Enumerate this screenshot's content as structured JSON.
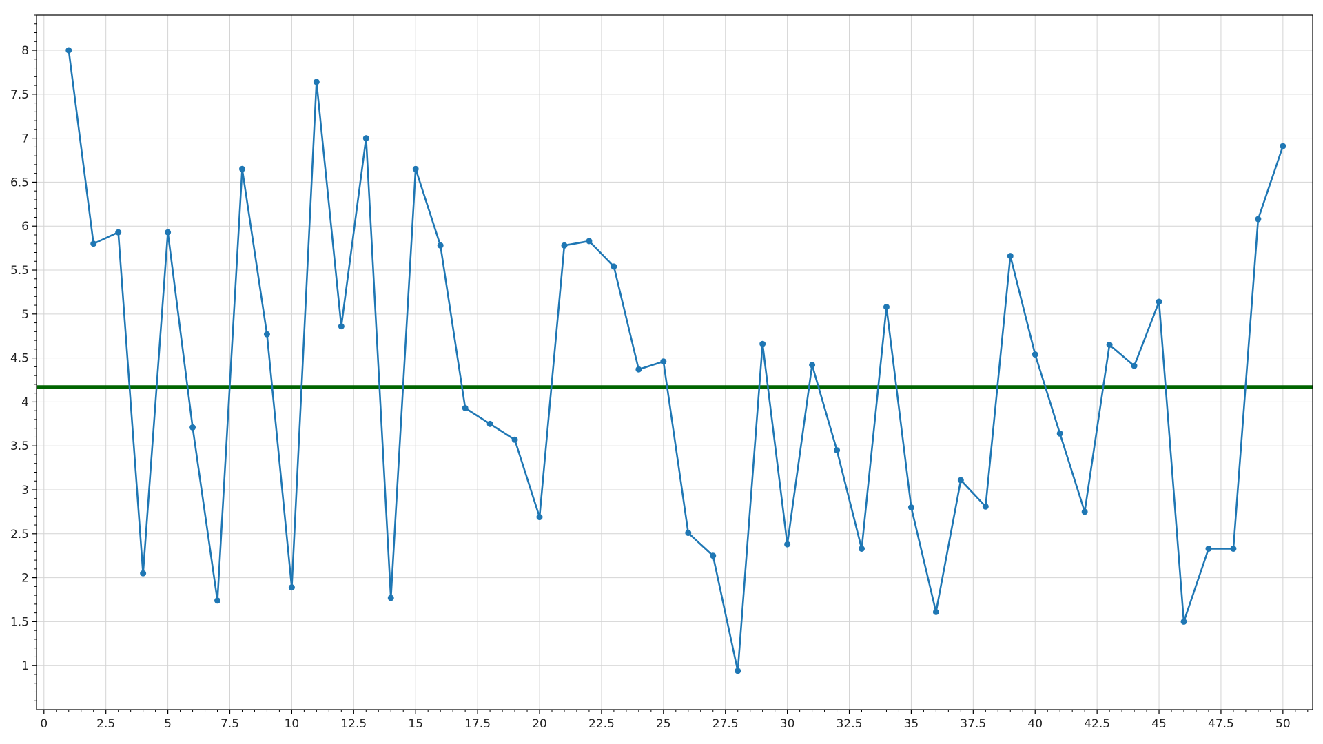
{
  "chart_data": {
    "type": "line",
    "title": "",
    "xlabel": "",
    "ylabel": "",
    "xlim": [
      -0.3,
      51.2
    ],
    "ylim": [
      0.5,
      8.4
    ],
    "x_ticks": [
      0,
      2.5,
      5,
      7.5,
      10,
      12.5,
      15,
      17.5,
      20,
      22.5,
      25,
      27.5,
      30,
      32.5,
      35,
      37.5,
      40,
      42.5,
      45,
      47.5,
      50
    ],
    "x_tick_labels": [
      "0",
      "2.5",
      "5",
      "7.5",
      "10",
      "12.5",
      "15",
      "17.5",
      "20",
      "22.5",
      "25",
      "27.5",
      "30",
      "32.5",
      "35",
      "37.5",
      "40",
      "42.5",
      "45",
      "47.5",
      "50"
    ],
    "y_ticks": [
      1,
      1.5,
      2,
      2.5,
      3,
      3.5,
      4,
      4.5,
      5,
      5.5,
      6,
      6.5,
      7,
      7.5,
      8
    ],
    "y_tick_labels": [
      "1",
      "1.5",
      "2",
      "2.5",
      "3",
      "3.5",
      "4",
      "4.5",
      "5",
      "5.5",
      "6",
      "6.5",
      "7",
      "7.5",
      "8"
    ],
    "grid": true,
    "series": [
      {
        "color": "#1f77b4",
        "marker": "circle",
        "x": [
          1,
          2,
          3,
          4,
          5,
          6,
          7,
          8,
          9,
          10,
          11,
          12,
          13,
          14,
          15,
          16,
          17,
          18,
          19,
          20,
          21,
          22,
          23,
          24,
          25,
          26,
          27,
          28,
          29,
          30,
          31,
          32,
          33,
          34,
          35,
          36,
          37,
          38,
          39,
          40,
          41,
          42,
          43,
          44,
          45,
          46,
          47,
          48,
          49,
          50
        ],
        "y": [
          8.0,
          5.8,
          5.93,
          2.05,
          5.93,
          3.71,
          1.74,
          6.65,
          4.77,
          1.89,
          7.64,
          4.86,
          7.0,
          1.77,
          6.65,
          5.78,
          3.93,
          3.75,
          3.57,
          2.69,
          5.78,
          5.83,
          5.54,
          4.37,
          4.46,
          2.51,
          2.25,
          0.94,
          4.66,
          2.38,
          4.42,
          3.45,
          2.33,
          5.08,
          2.8,
          1.61,
          3.11,
          2.81,
          5.66,
          4.54,
          3.64,
          2.75,
          4.65,
          4.41,
          5.14,
          1.5,
          2.33,
          2.33,
          6.08,
          6.91
        ]
      }
    ],
    "reference_line": {
      "orientation": "horizontal",
      "y": 4.17,
      "color": "#006400"
    }
  }
}
